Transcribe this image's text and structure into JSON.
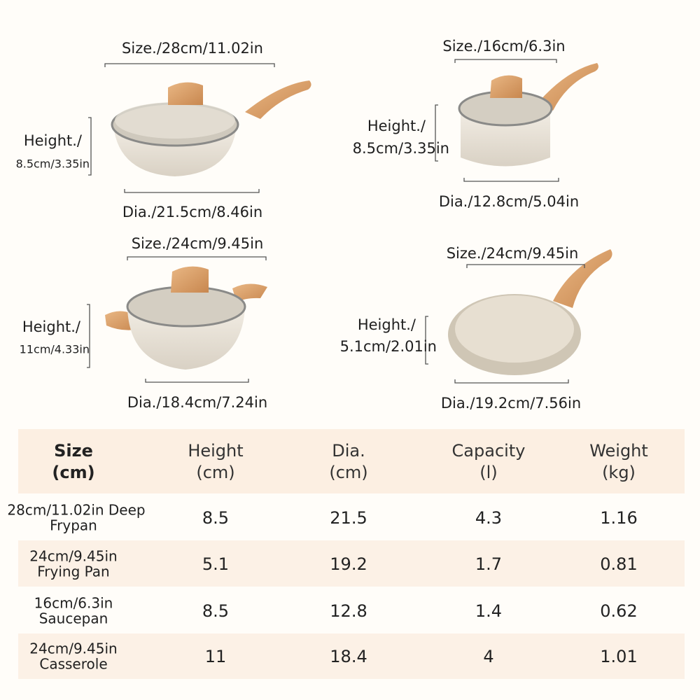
{
  "products": [
    {
      "size": "Size./28cm/11.02in",
      "height": [
        "Height./",
        "8.5cm/3.35in"
      ],
      "dia": "Dia./21.5cm/8.46in"
    },
    {
      "size": "Size./16cm/6.3in",
      "height": [
        "Height./",
        "8.5cm/3.35in"
      ],
      "dia": "Dia./12.8cm/5.04in"
    },
    {
      "size": "Size./24cm/9.45in",
      "height": [
        "Height./",
        "11cm/4.33in"
      ],
      "dia": "Dia./18.4cm/7.24in"
    },
    {
      "size": "Size./24cm/9.45in",
      "height": [
        "Height./",
        "5.1cm/2.01in"
      ],
      "dia": "Dia./19.2cm/7.56in"
    }
  ],
  "table": {
    "header": [
      [
        "Size",
        "(cm)"
      ],
      [
        "Height",
        "(cm)"
      ],
      [
        "Dia.",
        "(cm)"
      ],
      [
        "Capacity",
        "(l)"
      ],
      [
        "Weight",
        "(kg)"
      ]
    ],
    "rows": [
      [
        [
          "28cm/11.02in Deep",
          "Frypan"
        ],
        8.5,
        21.5,
        4.3,
        1.16
      ],
      [
        [
          "24cm/9.45in",
          "Frying Pan"
        ],
        5.1,
        19.2,
        1.7,
        0.81
      ],
      [
        [
          "16cm/6.3in",
          "Saucepan"
        ],
        8.5,
        12.8,
        1.4,
        0.62
      ],
      [
        [
          "24cm/9.45in",
          "Casserole"
        ],
        11,
        18.4,
        4,
        1.01
      ]
    ]
  }
}
